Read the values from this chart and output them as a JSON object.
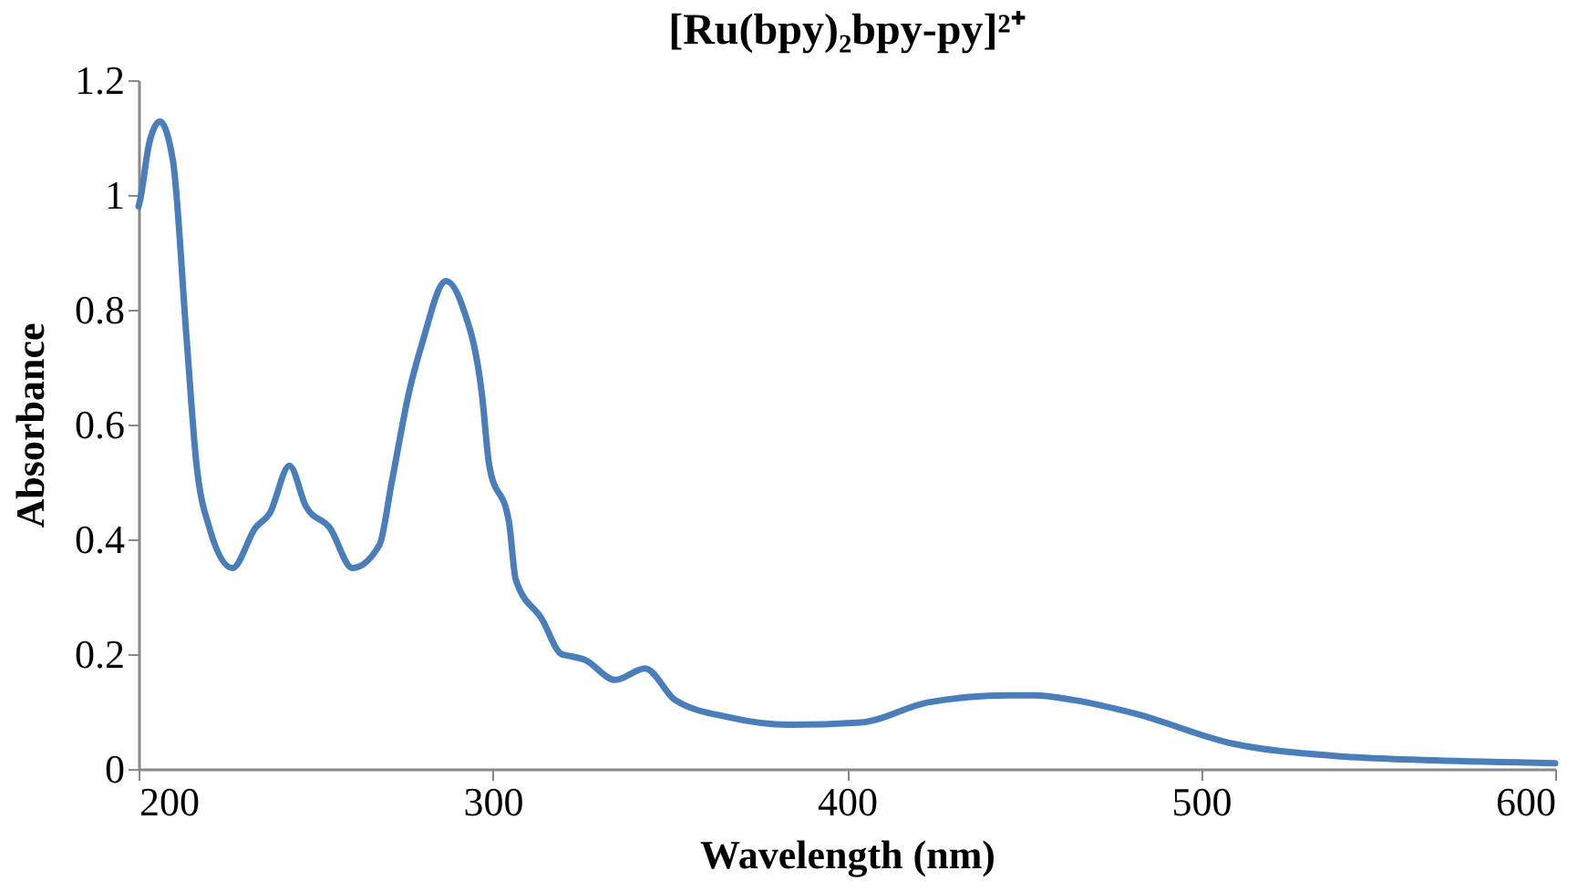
{
  "chart_data": {
    "type": "line",
    "title": "[Ru(bpy)₂bpy-py]²⁺",
    "xlabel": "Wavelength (nm)",
    "ylabel": "Absorbance",
    "x": [
      200,
      200.4,
      203,
      206,
      209.7,
      213.5,
      216.3,
      220,
      226.5,
      233,
      237,
      242.6,
      247.3,
      254,
      260.4,
      268,
      271.5,
      276.5,
      280,
      286.8,
      291.5,
      297,
      299,
      304.6,
      306.5,
      314,
      319.4,
      321.5,
      326,
      334.6,
      343,
      351.5,
      366.8,
      383.6,
      404,
      423,
      445.6,
      453,
      464,
      481,
      509,
      537,
      565.6,
      600
    ],
    "series": [
      {
        "color": "#4a7ebb",
        "values": [
          0.98,
          0.99,
          1.09,
          1.128,
          1.06,
          0.755,
          0.534,
          0.42,
          0.35,
          0.42,
          0.445,
          0.528,
          0.457,
          0.42,
          0.35,
          0.39,
          0.5,
          0.66,
          0.74,
          0.85,
          0.805,
          0.65,
          0.53,
          0.43,
          0.33,
          0.26,
          0.2,
          0.197,
          0.19,
          0.155,
          0.175,
          0.12,
          0.09,
          0.077,
          0.081,
          0.116,
          0.128,
          0.128,
          0.12,
          0.097,
          0.044,
          0.023,
          0.015,
          0.01
        ]
      }
    ],
    "xlim": [
      200,
      600
    ],
    "xticks": [
      200,
      300,
      400,
      500,
      600
    ],
    "ylim": [
      0,
      1.2
    ],
    "yticks": [
      0,
      0.2,
      0.4,
      0.6,
      0.8,
      1,
      1.2
    ],
    "grid": false,
    "marker": "none",
    "line_style": "solid"
  }
}
